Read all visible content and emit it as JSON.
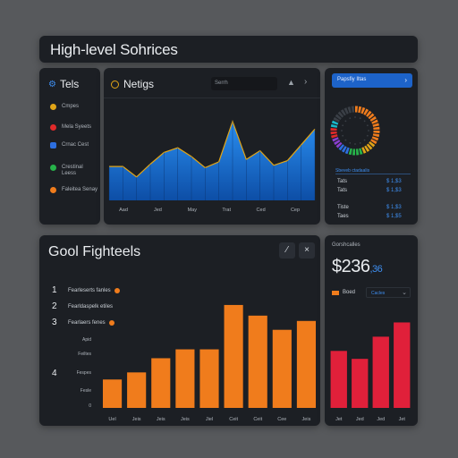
{
  "header": {
    "title": "High-level Sohrices"
  },
  "sidebar": {
    "title": "Tels",
    "items": [
      {
        "label": "Cmpes",
        "color": "#e0a417"
      },
      {
        "label": "Mela Syeets",
        "color": "#e02a2a"
      },
      {
        "label": "Crnac Cest",
        "color": "#2d6fe0"
      },
      {
        "label": "Crestinal Leess",
        "color": "#27b34a"
      },
      {
        "label": "Faleitea Senay",
        "color": "#f07c1c"
      }
    ]
  },
  "metrics": {
    "title": "Netigs",
    "search_placeholder": "Serrh",
    "icons": [
      "bell-icon",
      "chevron-right-icon"
    ]
  },
  "right_panel": {
    "button_label": "Papsfiy Iltas",
    "link_label": "Sbeveb ctadaalis",
    "rows": [
      {
        "label": "Tats",
        "value": "$ 1,$3"
      },
      {
        "label": "Tats",
        "value": "$ 1,$3"
      },
      {
        "label": "Tiste",
        "value": "$ 1,$3"
      },
      {
        "label": "Taes",
        "value": "$ 1,$5"
      }
    ],
    "donut_colors": [
      "#f07c1c",
      "#e0a417",
      "#27b34a",
      "#2d6fe0",
      "#8a3fd1",
      "#e02a2a",
      "#19b6c9",
      "#3a3f46"
    ]
  },
  "goals": {
    "title": "Gool Fighteels",
    "list": [
      {
        "num": "1",
        "label": "Fearleserts fanles"
      },
      {
        "num": "2",
        "label": "Fearldaspelk etiles"
      },
      {
        "num": "3",
        "label": "Fearlaers fenes"
      }
    ],
    "extra_labels": [
      {
        "num": "",
        "label": "Apid"
      },
      {
        "num": "",
        "label": "Feiltes"
      },
      {
        "num": "4",
        "label": "Fespes"
      },
      {
        "num": "",
        "label": "Fesle"
      },
      {
        "num": "",
        "label": "0"
      }
    ]
  },
  "revenue": {
    "label": "Gorshcalles",
    "value_main": "$236",
    "value_sub": ",36",
    "legend": "Boed",
    "select_value": "Cacles"
  },
  "chart_data": [
    {
      "type": "area",
      "title": "Netigs",
      "categories": [
        "Aad",
        "Jed",
        "May",
        "Trat",
        "Ced",
        "Cep"
      ],
      "x": [
        0,
        1,
        2,
        3,
        4,
        5,
        6,
        7,
        8,
        9,
        10,
        11,
        12,
        13,
        14,
        15
      ],
      "values": [
        58,
        58,
        40,
        62,
        82,
        90,
        75,
        56,
        66,
        135,
        70,
        85,
        60,
        68,
        95,
        122
      ],
      "ylim": [
        0,
        150
      ],
      "color": "#1e72d6",
      "grid": false
    },
    {
      "type": "bar",
      "title": "Gool Fighteels",
      "categories": [
        "Uel",
        "Jeis",
        "Jeis",
        "Jeis",
        "Jiel",
        "Ceit",
        "Ceit",
        "Cee",
        "Jeis"
      ],
      "values": [
        16,
        20,
        28,
        33,
        33,
        58,
        52,
        44,
        49
      ],
      "ylim": [
        0,
        62
      ],
      "color": "#f07c1c",
      "grid": false
    },
    {
      "type": "bar",
      "title": "Gorshcalles",
      "categories": [
        "Jet",
        "Jed",
        "Jed",
        "Jet"
      ],
      "values": [
        36,
        31,
        45,
        54
      ],
      "ylim": [
        0,
        65
      ],
      "color": "#e0203a",
      "grid": false
    }
  ]
}
